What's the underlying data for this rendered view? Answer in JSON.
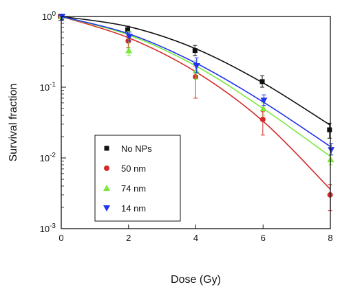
{
  "chart_data": {
    "type": "scatter",
    "xlabel": "Dose (Gy)",
    "ylabel": "Survival fraction",
    "xlim": [
      0,
      8
    ],
    "ylim": [
      0.001,
      1
    ],
    "yscale": "log",
    "x_ticks": [
      0,
      2,
      4,
      6,
      8
    ],
    "x_tick_labels": [
      "0",
      "2",
      "4",
      "6",
      "8"
    ],
    "y_ticks": [
      0.001,
      0.01,
      0.1,
      1
    ],
    "y_tick_labels": [
      {
        "base": "10",
        "exp": "-3"
      },
      {
        "base": "10",
        "exp": "-2"
      },
      {
        "base": "10",
        "exp": "-1"
      },
      {
        "base": "10",
        "exp": "0"
      }
    ],
    "grid": false,
    "legend_position": "bottom-left",
    "series": [
      {
        "name": "No NPs",
        "color": "#111111",
        "marker": "square",
        "x": [
          0,
          2,
          4,
          6,
          8
        ],
        "y": [
          1.0,
          0.65,
          0.33,
          0.12,
          0.025
        ],
        "err_low": [
          0.88,
          0.57,
          0.28,
          0.1,
          0.019
        ],
        "err_high": [
          1.0,
          0.73,
          0.39,
          0.145,
          0.031
        ],
        "fit": [
          1.0,
          0.72,
          0.35,
          0.115,
          0.029
        ]
      },
      {
        "name": "50 nm",
        "color": "#d42a2a",
        "marker": "circle",
        "x": [
          0,
          2,
          4,
          6,
          8
        ],
        "y": [
          1.0,
          0.45,
          0.14,
          0.035,
          0.003
        ],
        "err_low": [
          0.88,
          0.36,
          0.07,
          0.021,
          0.0018
        ],
        "err_high": [
          1.0,
          0.53,
          0.2,
          0.045,
          0.0042
        ],
        "fit": [
          1.0,
          0.5,
          0.165,
          0.033,
          0.0036
        ]
      },
      {
        "name": "74 nm",
        "color": "#7ae83a",
        "marker": "triangle-up",
        "x": [
          0,
          2,
          4,
          6,
          8
        ],
        "y": [
          1.0,
          0.33,
          0.17,
          0.05,
          0.0095
        ],
        "err_low": [
          0.88,
          0.28,
          0.13,
          0.04,
          0.008
        ],
        "err_high": [
          1.0,
          0.62,
          0.24,
          0.06,
          0.011
        ],
        "fit": [
          1.0,
          0.55,
          0.2,
          0.05,
          0.0105
        ]
      },
      {
        "name": "14 nm",
        "color": "#2233ee",
        "marker": "triangle-down",
        "x": [
          0,
          2,
          4,
          6,
          8
        ],
        "y": [
          1.0,
          0.52,
          0.2,
          0.065,
          0.013
        ],
        "err_low": [
          0.88,
          0.45,
          0.16,
          0.055,
          0.011
        ],
        "err_high": [
          1.0,
          0.6,
          0.26,
          0.078,
          0.016
        ],
        "fit": [
          1.0,
          0.57,
          0.22,
          0.062,
          0.0145
        ]
      }
    ]
  }
}
